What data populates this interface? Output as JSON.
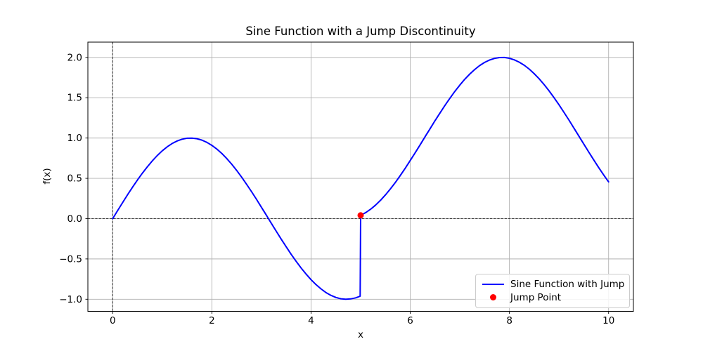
{
  "chart_data": {
    "type": "line",
    "title": "Sine Function with a Jump Discontinuity",
    "xlabel": "x",
    "ylabel": "f(x)",
    "xlim": [
      -0.5,
      10.5
    ],
    "ylim": [
      -1.15,
      2.19
    ],
    "x_ticks": [
      0,
      2,
      4,
      6,
      8,
      10
    ],
    "y_ticks": [
      -1.0,
      -0.5,
      0.0,
      0.5,
      1.0,
      1.5,
      2.0
    ],
    "grid": true,
    "grid_color": "#b0b0b0",
    "background_color": "#ffffff",
    "text_color": "#000000",
    "legend_position": "lower right",
    "legend_border_color": "#cccccc",
    "reference_lines": [
      {
        "axis": "x",
        "value": 0,
        "style": "dashed",
        "color": "#1a1a1a"
      },
      {
        "axis": "y",
        "value": 0,
        "style": "dashed",
        "color": "#1a1a1a"
      }
    ],
    "series": [
      {
        "name": "Sine Function with Jump",
        "type": "line",
        "color": "#0000ff",
        "linewidth": 2,
        "description": "f(x) = sin(x) for x < 5, sin(x) + 1 for x >= 5 (jump of +1 at x = 5)",
        "x": [
          0,
          0.1,
          0.2,
          0.3,
          0.4,
          0.5,
          0.6,
          0.7,
          0.8,
          0.9,
          1,
          1.1,
          1.2,
          1.3,
          1.4,
          1.5,
          1.6,
          1.7,
          1.8,
          1.9,
          2,
          2.1,
          2.2,
          2.3,
          2.4,
          2.5,
          2.6,
          2.7,
          2.8,
          2.9,
          3,
          3.1,
          3.2,
          3.3,
          3.4,
          3.5,
          3.6,
          3.7,
          3.8,
          3.9,
          4,
          4.1,
          4.2,
          4.3,
          4.4,
          4.5,
          4.6,
          4.7,
          4.8,
          4.9,
          4.99,
          5,
          5.1,
          5.2,
          5.3,
          5.4,
          5.5,
          5.6,
          5.7,
          5.8,
          5.9,
          6,
          6.1,
          6.2,
          6.3,
          6.4,
          6.5,
          6.6,
          6.7,
          6.8,
          6.9,
          7,
          7.1,
          7.2,
          7.3,
          7.4,
          7.5,
          7.6,
          7.7,
          7.8,
          7.9,
          8,
          8.1,
          8.2,
          8.3,
          8.4,
          8.5,
          8.6,
          8.7,
          8.8,
          8.9,
          9,
          9.1,
          9.2,
          9.3,
          9.4,
          9.5,
          9.6,
          9.7,
          9.8,
          9.9,
          10
        ],
        "y": [
          0,
          0.0998,
          0.1987,
          0.2955,
          0.3894,
          0.4794,
          0.5646,
          0.6442,
          0.7174,
          0.7833,
          0.8415,
          0.8912,
          0.932,
          0.9636,
          0.9854,
          0.9975,
          0.9996,
          0.9917,
          0.9738,
          0.9463,
          0.9093,
          0.8632,
          0.8085,
          0.7457,
          0.6755,
          0.5985,
          0.5155,
          0.4274,
          0.335,
          0.2392,
          0.1411,
          0.0416,
          -0.0584,
          -0.1577,
          -0.2555,
          -0.3508,
          -0.4425,
          -0.5298,
          -0.6119,
          -0.6878,
          -0.7568,
          -0.8183,
          -0.8716,
          -0.9162,
          -0.9516,
          -0.9775,
          -0.9937,
          -0.9999,
          -0.9962,
          -0.9825,
          -0.9617,
          0.0411,
          0.0742,
          0.1165,
          0.1677,
          0.2272,
          0.2945,
          0.3687,
          0.4493,
          0.5354,
          0.6261,
          0.7206,
          0.8178,
          0.9169,
          1.0168,
          1.1165,
          1.2151,
          1.3115,
          1.4048,
          1.4941,
          1.5784,
          1.657,
          1.729,
          1.7937,
          1.8504,
          1.8987,
          1.938,
          1.9679,
          1.9882,
          1.9985,
          1.9989,
          1.9894,
          1.9699,
          1.9407,
          1.9022,
          1.8546,
          1.7985,
          1.7344,
          1.663,
          1.5849,
          1.501,
          1.4121,
          1.3191,
          1.2229,
          1.1245,
          1.0248,
          0.9248,
          0.8257,
          0.7282,
          0.6335,
          0.5425,
          0.456
        ]
      },
      {
        "name": "Jump Point",
        "type": "scatter",
        "color": "#ff0000",
        "marker": "circle",
        "markersize": 9,
        "x": [
          5
        ],
        "y": [
          0.041
        ]
      }
    ]
  }
}
